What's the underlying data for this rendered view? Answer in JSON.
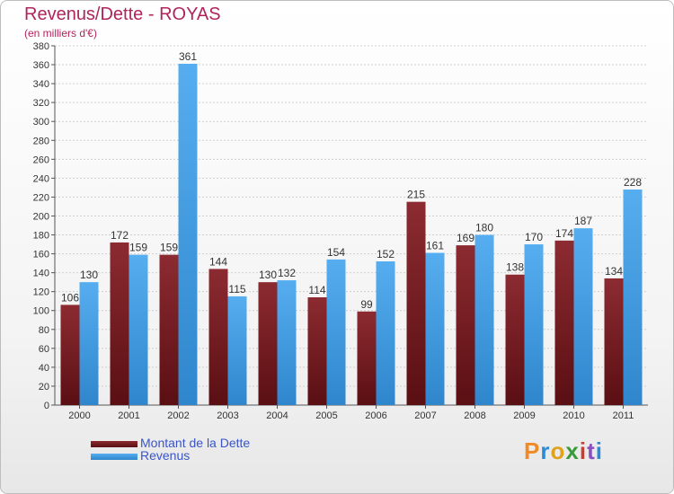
{
  "chart_data": {
    "type": "bar",
    "title": "Revenus/Dette - ROYAS",
    "subtitle": "(en milliers d'€)",
    "categories": [
      "2000",
      "2001",
      "2002",
      "2003",
      "2004",
      "2005",
      "2006",
      "2007",
      "2008",
      "2009",
      "2010",
      "2011"
    ],
    "series": [
      {
        "name": "Montant de la Dette",
        "color": "#7a1f24",
        "values": [
          106,
          172,
          159,
          144,
          130,
          114,
          99,
          215,
          169,
          138,
          174,
          134
        ]
      },
      {
        "name": "Revenus",
        "color": "#4aa3e6",
        "values": [
          130,
          159,
          361,
          115,
          132,
          154,
          152,
          161,
          180,
          170,
          187,
          228
        ]
      }
    ],
    "ylim": [
      0,
      380
    ],
    "yticks": [
      0,
      20,
      40,
      60,
      80,
      100,
      120,
      140,
      160,
      180,
      200,
      220,
      240,
      260,
      280,
      300,
      320,
      340,
      360,
      380
    ],
    "grid": true,
    "legend_position": "bottom-left",
    "data_labels": true
  },
  "logo": {
    "text": "Proxiti"
  }
}
